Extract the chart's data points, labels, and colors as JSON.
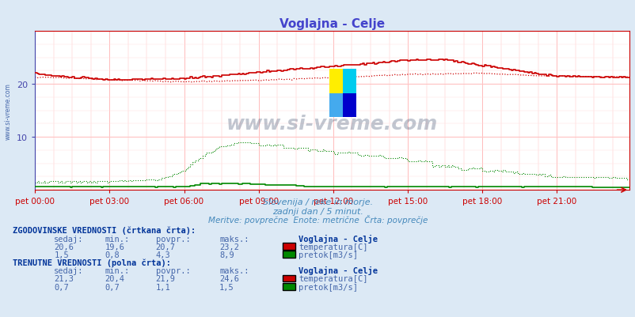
{
  "title": "Voglajna - Celje",
  "title_color": "#4444cc",
  "bg_color": "#dce9f5",
  "plot_bg_color": "#ffffff",
  "subtitle1": "Slovenija / reke in morje.",
  "subtitle2": "zadnji dan / 5 minut.",
  "subtitle3": "Meritve: povprečne  Enote: metrične  Črta: povprečje",
  "subtitle_color": "#4488bb",
  "xlabel_ticks": [
    "pet 00:00",
    "pet 03:00",
    "pet 06:00",
    "pet 09:00",
    "pet 12:00",
    "pet 15:00",
    "pet 18:00",
    "pet 21:00"
  ],
  "xlabel_tick_positions": [
    0,
    36,
    72,
    108,
    144,
    180,
    216,
    252
  ],
  "total_points": 288,
  "ylim": [
    0,
    30
  ],
  "yticks": [
    10,
    20
  ],
  "grid_color": "#ffbbbb",
  "watermark": "www.si-vreme.com",
  "temp_solid_color": "#cc0000",
  "temp_dashed_color": "#cc0000",
  "flow_solid_color": "#008800",
  "flow_dashed_color": "#008800",
  "hist_section_title": "ZGODOVINSKE VREDNOSTI (črtkana črta):",
  "curr_section_title": "TRENUTNE VREDNOSTI (polna črta):",
  "table_header": [
    "sedaj:",
    "min.:",
    "povpr.:",
    "maks.:",
    "Voglajna - Celje"
  ],
  "hist_temp": {
    "sedaj": "20,6",
    "min": "19,6",
    "povpr": "20,7",
    "maks": "23,2",
    "label": "temperatura[C]"
  },
  "hist_flow": {
    "sedaj": "1,5",
    "min": "0,8",
    "povpr": "4,3",
    "maks": "8,9",
    "label": "pretok[m3/s]"
  },
  "curr_temp": {
    "sedaj": "21,3",
    "min": "20,4",
    "povpr": "21,9",
    "maks": "24,6",
    "label": "temperatura[C]"
  },
  "curr_flow": {
    "sedaj": "0,7",
    "min": "0,7",
    "povpr": "1,1",
    "maks": "1,5",
    "label": "pretok[m3/s]"
  },
  "text_color": "#4466aa",
  "bold_text_color": "#003399",
  "temp_icon_color": "#cc0000",
  "flow_icon_color": "#008800"
}
